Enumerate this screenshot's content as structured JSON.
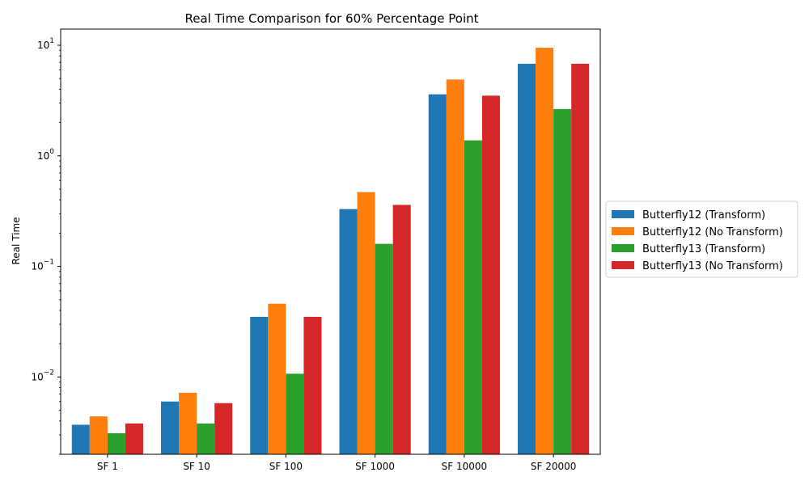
{
  "chart_data": {
    "type": "bar",
    "title": "Real Time Comparison for 60% Percentage Point",
    "xlabel": "",
    "ylabel": "Real Time",
    "yscale": "log",
    "ylim": [
      0.002,
      14
    ],
    "y_ticks": [
      {
        "value": 0.01,
        "base": "10",
        "exp": "−2"
      },
      {
        "value": 0.1,
        "base": "10",
        "exp": "−1"
      },
      {
        "value": 1,
        "base": "10",
        "exp": "0"
      },
      {
        "value": 10,
        "base": "10",
        "exp": "1"
      }
    ],
    "categories": [
      "SF 1",
      "SF 10",
      "SF 100",
      "SF 1000",
      "SF 10000",
      "SF 20000"
    ],
    "series": [
      {
        "name": "Butterfly12 (Transform)",
        "color": "#1f77b4",
        "values": [
          0.0037,
          0.006,
          0.035,
          0.33,
          3.6,
          6.8
        ]
      },
      {
        "name": "Butterfly12 (No Transform)",
        "color": "#ff7f0e",
        "values": [
          0.0044,
          0.0072,
          0.046,
          0.47,
          4.9,
          9.5
        ]
      },
      {
        "name": "Butterfly13 (Transform)",
        "color": "#2ca02c",
        "values": [
          0.0031,
          0.0038,
          0.0107,
          0.16,
          1.38,
          2.65
        ]
      },
      {
        "name": "Butterfly13 (No Transform)",
        "color": "#d62728",
        "values": [
          0.0038,
          0.0058,
          0.035,
          0.36,
          3.5,
          6.8
        ]
      }
    ],
    "legend_position": "center-right outside",
    "grid": false
  }
}
